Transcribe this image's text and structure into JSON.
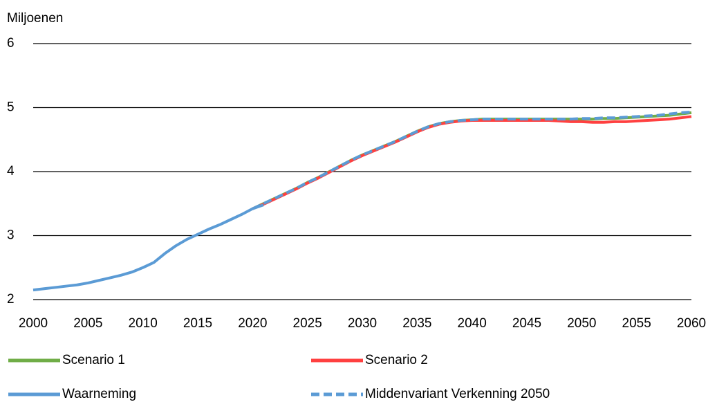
{
  "chart_data": {
    "type": "line",
    "y_label": "Miljoenen",
    "x": [
      2000,
      2001,
      2002,
      2003,
      2004,
      2005,
      2006,
      2007,
      2008,
      2009,
      2010,
      2011,
      2012,
      2013,
      2014,
      2015,
      2016,
      2017,
      2018,
      2019,
      2020,
      2021,
      2022,
      2023,
      2024,
      2025,
      2026,
      2027,
      2028,
      2029,
      2030,
      2031,
      2032,
      2033,
      2034,
      2035,
      2036,
      2037,
      2038,
      2039,
      2040,
      2041,
      2042,
      2043,
      2044,
      2045,
      2046,
      2047,
      2048,
      2049,
      2050,
      2051,
      2052,
      2053,
      2054,
      2055,
      2056,
      2057,
      2058,
      2059,
      2060
    ],
    "series": [
      {
        "name": "Scenario 1",
        "color": "#70ad47",
        "dash": false,
        "values": [
          null,
          null,
          null,
          null,
          null,
          null,
          null,
          null,
          null,
          null,
          null,
          null,
          null,
          null,
          null,
          null,
          null,
          null,
          null,
          null,
          3.42,
          3.5,
          3.58,
          3.66,
          3.74,
          3.83,
          3.91,
          4.0,
          4.09,
          4.18,
          4.26,
          4.33,
          4.4,
          4.47,
          4.55,
          4.63,
          4.7,
          4.75,
          4.78,
          4.8,
          4.81,
          4.82,
          4.82,
          4.82,
          4.82,
          4.82,
          4.82,
          4.82,
          4.82,
          4.82,
          4.82,
          4.82,
          4.83,
          4.83,
          4.84,
          4.85,
          4.86,
          4.87,
          4.88,
          4.9,
          4.92
        ]
      },
      {
        "name": "Scenario 2",
        "color": "#ff4040",
        "dash": false,
        "values": [
          null,
          null,
          null,
          null,
          null,
          null,
          null,
          null,
          null,
          null,
          null,
          null,
          null,
          null,
          null,
          null,
          null,
          null,
          null,
          null,
          3.42,
          3.49,
          3.57,
          3.65,
          3.73,
          3.82,
          3.9,
          3.99,
          4.08,
          4.17,
          4.25,
          4.32,
          4.39,
          4.46,
          4.54,
          4.62,
          4.69,
          4.74,
          4.77,
          4.79,
          4.8,
          4.8,
          4.8,
          4.8,
          4.8,
          4.8,
          4.8,
          4.8,
          4.79,
          4.78,
          4.78,
          4.77,
          4.77,
          4.78,
          4.78,
          4.79,
          4.8,
          4.81,
          4.82,
          4.84,
          4.86
        ]
      },
      {
        "name": "Waarneming",
        "color": "#5b9bd5",
        "dash": false,
        "values": [
          2.15,
          2.17,
          2.19,
          2.21,
          2.23,
          2.26,
          2.3,
          2.34,
          2.38,
          2.43,
          2.5,
          2.58,
          2.72,
          2.84,
          2.94,
          3.02,
          3.1,
          3.17,
          3.25,
          3.33,
          3.42,
          3.48,
          null,
          null,
          null,
          null,
          null,
          null,
          null,
          null,
          null,
          null,
          null,
          null,
          null,
          null,
          null,
          null,
          null,
          null,
          null,
          null,
          null,
          null,
          null,
          null,
          null,
          null,
          null,
          null,
          null,
          null,
          null,
          null,
          null,
          null,
          null,
          null,
          null,
          null,
          null
        ]
      },
      {
        "name": "Middenvariant Verkenning 2050",
        "color": "#5b9bd5",
        "dash": true,
        "values": [
          null,
          null,
          null,
          null,
          null,
          null,
          null,
          null,
          null,
          null,
          null,
          null,
          null,
          null,
          null,
          null,
          null,
          null,
          null,
          null,
          3.42,
          3.5,
          3.58,
          3.66,
          3.74,
          3.83,
          3.91,
          4.0,
          4.09,
          4.18,
          4.26,
          4.33,
          4.4,
          4.47,
          4.55,
          4.63,
          4.7,
          4.75,
          4.78,
          4.8,
          4.81,
          4.82,
          4.82,
          4.82,
          4.82,
          4.82,
          4.82,
          4.82,
          4.82,
          4.82,
          4.83,
          4.83,
          4.84,
          4.84,
          4.85,
          4.86,
          4.87,
          4.88,
          4.9,
          4.92,
          4.93
        ]
      }
    ],
    "xlim": [
      2000,
      2060
    ],
    "xticks": [
      2000,
      2005,
      2010,
      2015,
      2020,
      2025,
      2030,
      2035,
      2040,
      2045,
      2050,
      2055,
      2060
    ],
    "ylim": [
      2,
      6
    ],
    "yticks": [
      2,
      3,
      4,
      5,
      6
    ],
    "grid": true,
    "legend": "bottom"
  }
}
